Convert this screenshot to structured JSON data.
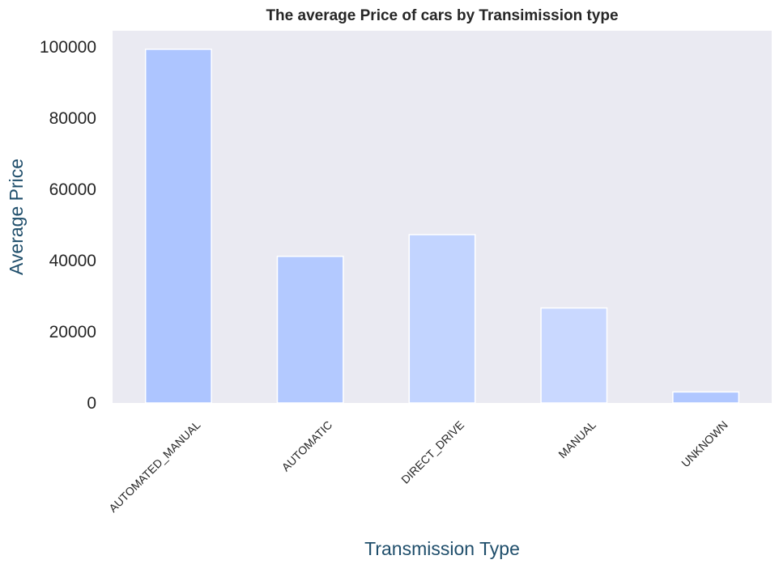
{
  "chart_data": {
    "type": "bar",
    "title": "The average Price of cars by Transimission type",
    "xlabel": "Transmission Type",
    "ylabel": "Average Price",
    "categories": [
      "AUTOMATED_MANUAL",
      "AUTOMATIC",
      "DIRECT_DRIVE",
      "MANUAL",
      "UNKNOWN"
    ],
    "values": [
      99400,
      41200,
      47300,
      26700,
      3100
    ],
    "ylim": [
      0,
      104600
    ],
    "yticks": [
      "0",
      "20000",
      "40000",
      "60000",
      "80000",
      "100000"
    ],
    "ytick_values": [
      0,
      20000,
      40000,
      60000,
      80000,
      100000
    ],
    "grid": false,
    "legend": "none",
    "colors": {
      "plot_background": "#eaeaf2",
      "axis_label": "#1f4e6b",
      "bars": [
        "#adc5ff",
        "#b3c9ff",
        "#c2d4ff",
        "#c9d8ff",
        "#b0c7ff"
      ],
      "bar_edge": "#ffffff"
    }
  }
}
